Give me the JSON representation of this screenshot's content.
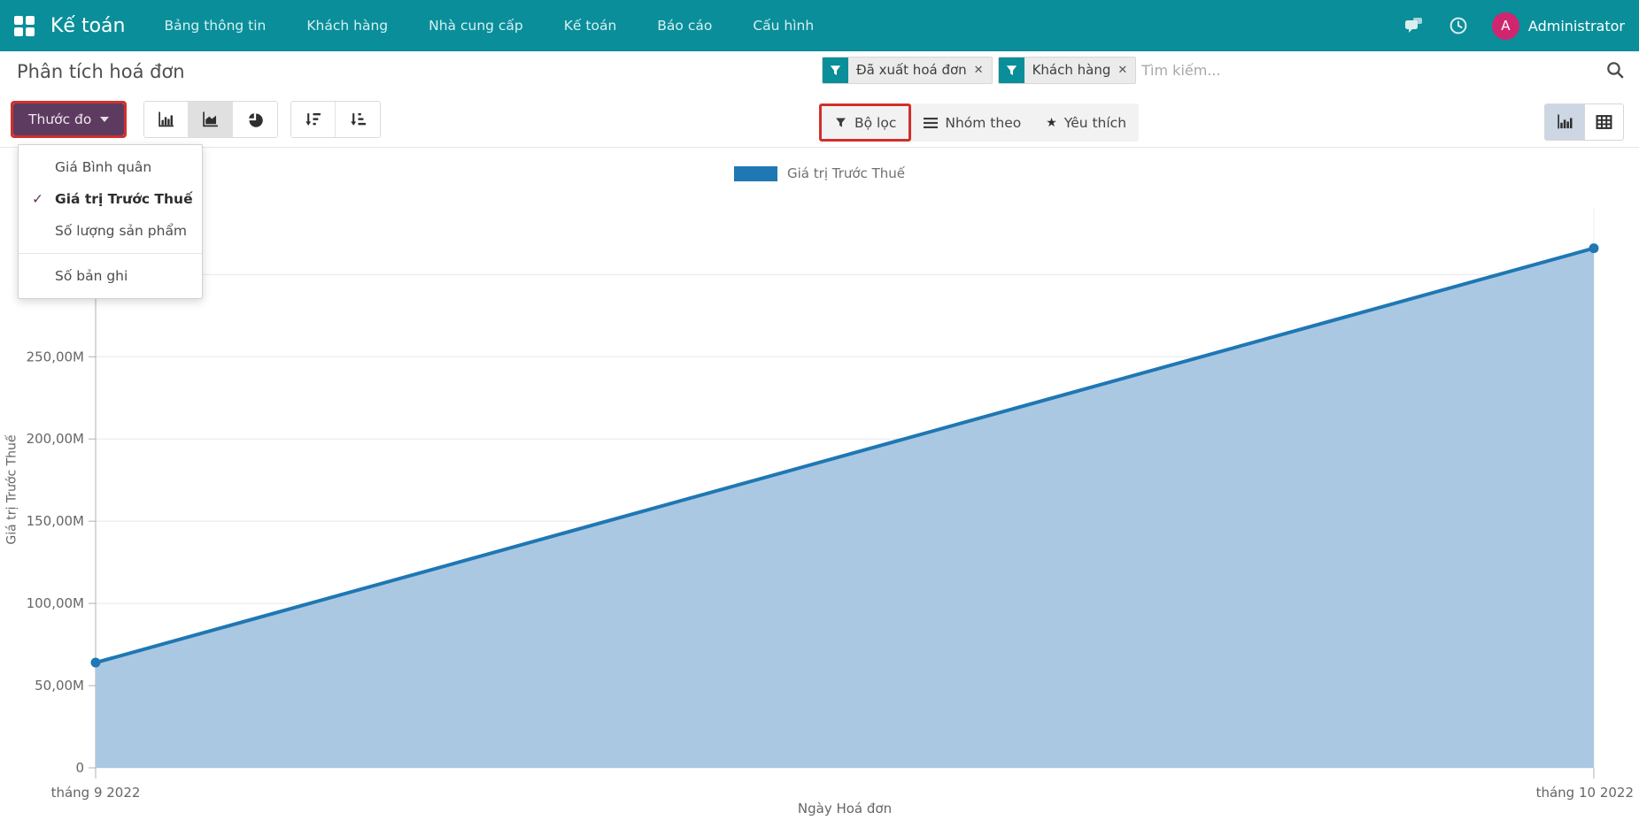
{
  "colors": {
    "navbar": "#0a8e9a",
    "avatar": "#d02670",
    "primary_button": "#5d3a5f",
    "annotation_highlight": "#d0302c",
    "series_line": "#1f77b4",
    "series_fill": "#abc8e2"
  },
  "navbar": {
    "app_title": "Kế toán",
    "menu_items": [
      "Bảng thông tin",
      "Khách hàng",
      "Nhà cung cấp",
      "Kế toán",
      "Báo cáo",
      "Cấu hình"
    ],
    "avatar_letter": "A",
    "user_name": "Administrator"
  },
  "breadcrumb": {
    "title": "Phân tích hoá đơn"
  },
  "search": {
    "facets": [
      {
        "label": "Đã xuất hoá đơn"
      },
      {
        "label": "Khách hàng"
      }
    ],
    "remove_icon": "✕",
    "placeholder": "Tìm kiếm..."
  },
  "toolbar": {
    "measures_label": "Thước đo",
    "filters_label": "Bộ lọc",
    "groupby_label": "Nhóm theo",
    "favorites_label": "Yêu thích",
    "favorites_icon": "★"
  },
  "measures_dropdown": {
    "check_glyph": "✓",
    "items": [
      {
        "label": "Giá Bình quân",
        "checked": false
      },
      {
        "label": "Giá trị Trước Thuế",
        "checked": true
      },
      {
        "label": "Số lượng sản phẩm",
        "checked": false
      }
    ],
    "footer_items": [
      {
        "label": "Số bản ghi",
        "checked": false
      }
    ]
  },
  "annotations": {
    "highlighted_elements": [
      "measures-button",
      "filters-button"
    ],
    "color": "#d0302c"
  },
  "chart_data": {
    "type": "area",
    "title": "",
    "xlabel": "Ngày Hoá đơn",
    "ylabel": "Giá trị Trước Thuế",
    "legend_position": "top",
    "grid": true,
    "ylim": [
      0,
      340000000
    ],
    "yticks": [
      {
        "value": 0,
        "label": "0"
      },
      {
        "value": 50000000,
        "label": "50,00M"
      },
      {
        "value": 100000000,
        "label": "100,00M"
      },
      {
        "value": 150000000,
        "label": "150,00M"
      },
      {
        "value": 200000000,
        "label": "200,00M"
      },
      {
        "value": 250000000,
        "label": "250,00M"
      },
      {
        "value": 300000000,
        "label": ""
      }
    ],
    "series": [
      {
        "name": "Giá trị Trước Thuế",
        "color": "#1f77b4",
        "fill_color": "#abc8e2",
        "x": [
          "tháng 9 2022",
          "tháng 10 2022"
        ],
        "values": [
          64000000,
          316000000
        ]
      }
    ]
  }
}
